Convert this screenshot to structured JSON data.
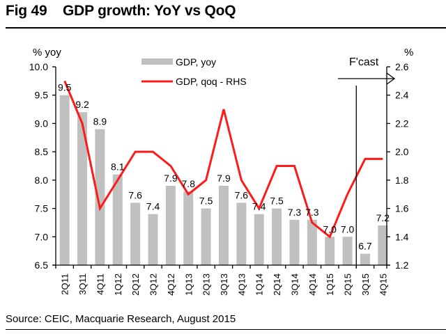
{
  "header": {
    "title": "Fig 49    GDP growth: YoY vs QoQ"
  },
  "footer": {
    "source": "Source: CEIC, Macquarie Research, August 2015"
  },
  "chart_data": {
    "type": "bar",
    "title": "GDP growth: YoY vs QoQ",
    "figure_number": "Fig 49",
    "categories": [
      "2Q11",
      "3Q11",
      "4Q11",
      "1Q12",
      "2Q12",
      "3Q12",
      "4Q12",
      "1Q13",
      "2Q13",
      "3Q13",
      "4Q13",
      "1Q14",
      "2Q14",
      "3Q14",
      "4Q14",
      "1Q15",
      "2Q15",
      "3Q15",
      "4Q15"
    ],
    "series": [
      {
        "name": "GDP, yoy",
        "type": "bar",
        "axis": "left",
        "color": "#c0c0c0",
        "values": [
          9.5,
          9.2,
          8.9,
          8.1,
          7.6,
          7.4,
          7.9,
          7.8,
          7.5,
          7.9,
          7.6,
          7.4,
          7.5,
          7.3,
          7.3,
          7.0,
          7.0,
          6.7,
          7.2
        ],
        "labels": [
          "9.5",
          "9.2",
          "8.9",
          "8.1",
          "7.6",
          "7.4",
          "7.9",
          "7.8",
          "7.5",
          "7.9",
          "7.6",
          "7.4",
          "7.5",
          "7.3",
          "7.3",
          "7.0",
          "7.0",
          "6.7",
          "7.2"
        ]
      },
      {
        "name": "GDP, qoq - RHS",
        "type": "line",
        "axis": "right",
        "color": "#ff1a1a",
        "values": [
          2.5,
          2.2,
          1.6,
          1.8,
          2.0,
          2.0,
          1.9,
          1.7,
          1.8,
          2.3,
          1.8,
          1.6,
          1.9,
          1.9,
          1.5,
          1.4,
          1.7,
          1.95,
          1.95
        ]
      }
    ],
    "left_axis": {
      "label": "% yoy",
      "ylim": [
        6.5,
        10.0
      ],
      "ticks": [
        "10.0",
        "9.5",
        "9.0",
        "8.5",
        "8.0",
        "7.5",
        "7.0",
        "6.5"
      ],
      "tick_values": [
        10.0,
        9.5,
        9.0,
        8.5,
        8.0,
        7.5,
        7.0,
        6.5
      ]
    },
    "right_axis": {
      "label": "%",
      "ylim": [
        1.2,
        2.6
      ],
      "ticks": [
        "2.6",
        "2.4",
        "2.2",
        "2.0",
        "1.8",
        "1.6",
        "1.4",
        "1.2"
      ],
      "tick_values": [
        2.6,
        2.4,
        2.2,
        2.0,
        1.8,
        1.6,
        1.4,
        1.2
      ]
    },
    "legend": {
      "placement": "top-center",
      "entries": [
        "GDP, yoy",
        "GDP, qoq - RHS"
      ]
    },
    "annotation": {
      "text": "F'cast",
      "forecast_start_after": "2Q15"
    },
    "grid": false,
    "xlabel": "",
    "ylabel": "% yoy",
    "y2label": "%"
  }
}
